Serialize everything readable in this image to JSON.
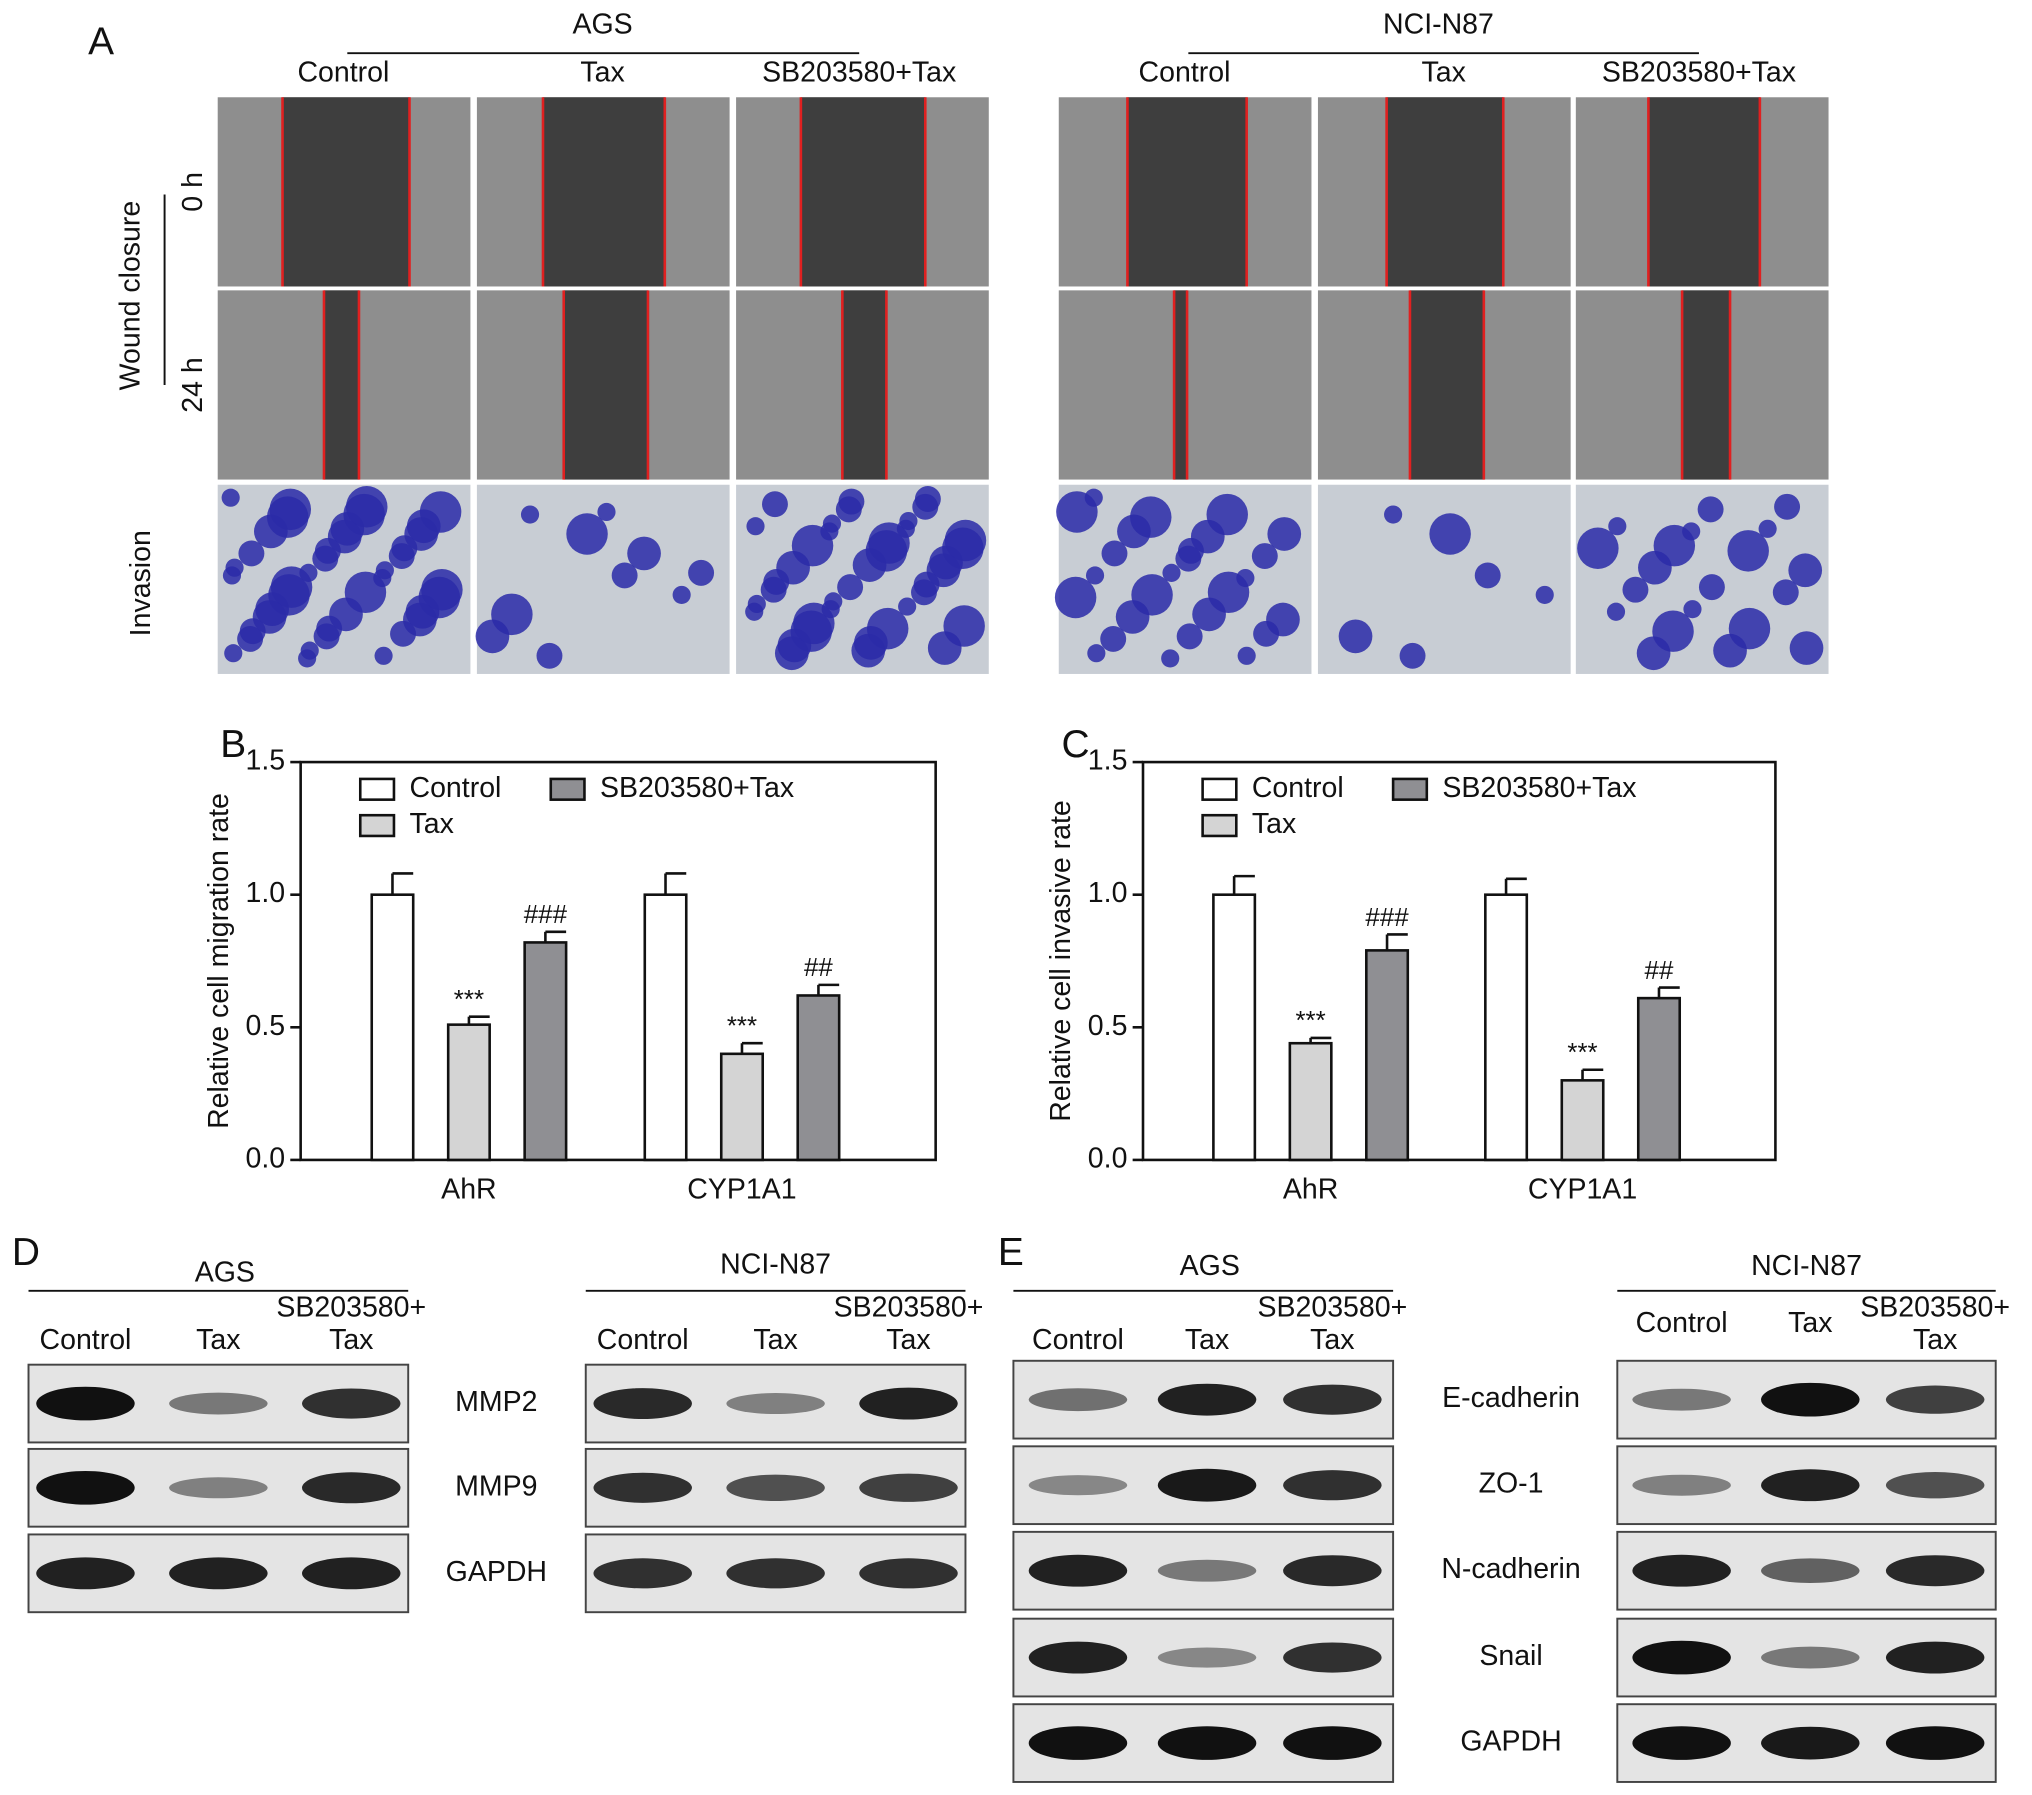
{
  "panel_a": {
    "label": "A",
    "groups": [
      {
        "name": "AGS",
        "columns": [
          "Control",
          "Tax",
          "SB203580+Tax"
        ]
      },
      {
        "name": "NCI-N87",
        "columns": [
          "Control",
          "Tax",
          "SB203580+Tax"
        ]
      }
    ],
    "wound_label": "Wound closure",
    "times": [
      "0 h",
      "24 h"
    ],
    "invasion_label": "Invasion"
  },
  "chart_data": [
    {
      "type": "bar",
      "panel_label": "B",
      "ylabel": "Relative cell migration rate",
      "categories": [
        "AhR",
        "CYP1A1"
      ],
      "series": [
        {
          "name": "Control",
          "color": "#ffffff",
          "values": [
            1.0,
            1.0
          ],
          "errors": [
            0.08,
            0.08
          ]
        },
        {
          "name": "Tax",
          "color": "#d4d4d4",
          "values": [
            0.51,
            0.4
          ],
          "errors": [
            0.03,
            0.04
          ],
          "annotations": [
            "***",
            "***"
          ]
        },
        {
          "name": "SB203580+Tax",
          "color": "#8f8f93",
          "values": [
            0.82,
            0.62
          ],
          "errors": [
            0.04,
            0.04
          ],
          "annotations": [
            "###",
            "##"
          ]
        }
      ],
      "ylim": [
        0,
        1.5
      ],
      "yticks": [
        {
          "value": 0,
          "label": "0.0"
        },
        0.5,
        {
          "value": 1,
          "label": "1.0"
        },
        1.5
      ]
    },
    {
      "type": "bar",
      "panel_label": "C",
      "ylabel": "Relative cell invasive rate",
      "categories": [
        "AhR",
        "CYP1A1"
      ],
      "series": [
        {
          "name": "Control",
          "color": "#ffffff",
          "values": [
            1.0,
            1.0
          ],
          "errors": [
            0.07,
            0.06
          ]
        },
        {
          "name": "Tax",
          "color": "#d4d4d4",
          "values": [
            0.44,
            0.3
          ],
          "errors": [
            0.02,
            0.04
          ],
          "annotations": [
            "***",
            "***"
          ]
        },
        {
          "name": "SB203580+Tax",
          "color": "#8f8f93",
          "values": [
            0.79,
            0.61
          ],
          "errors": [
            0.06,
            0.04
          ],
          "annotations": [
            "###",
            "##"
          ]
        }
      ],
      "ylim": [
        0,
        1.5
      ],
      "yticks": [
        {
          "value": 0,
          "label": "0.0"
        },
        0.5,
        {
          "value": 1,
          "label": "1.0"
        },
        1.5
      ]
    }
  ],
  "panel_d": {
    "label": "D",
    "proteins": [
      "MMP2",
      "MMP9",
      "GAPDH"
    ],
    "blots": [
      {
        "cell_line": "AGS",
        "columns": [
          [
            "Control"
          ],
          [
            "Tax"
          ],
          [
            "SB203580+",
            "Tax"
          ]
        ]
      },
      {
        "cell_line": "NCI-N87",
        "columns": [
          [
            "Control"
          ],
          [
            "Tax"
          ],
          [
            "SB203580+",
            "Tax"
          ]
        ]
      }
    ]
  },
  "panel_e": {
    "label": "E",
    "proteins": [
      "E-cadherin",
      "ZO-1",
      "N-cadherin",
      "Snail",
      "GAPDH"
    ],
    "blots": [
      {
        "cell_line": "AGS",
        "columns": [
          [
            "Control"
          ],
          [
            "Tax"
          ],
          [
            "SB203580+",
            "Tax"
          ]
        ]
      },
      {
        "cell_line": "NCI-N87",
        "columns": [
          [
            "Control"
          ],
          [
            "Tax"
          ],
          [
            "SB203580+",
            "Tax"
          ]
        ]
      }
    ]
  }
}
